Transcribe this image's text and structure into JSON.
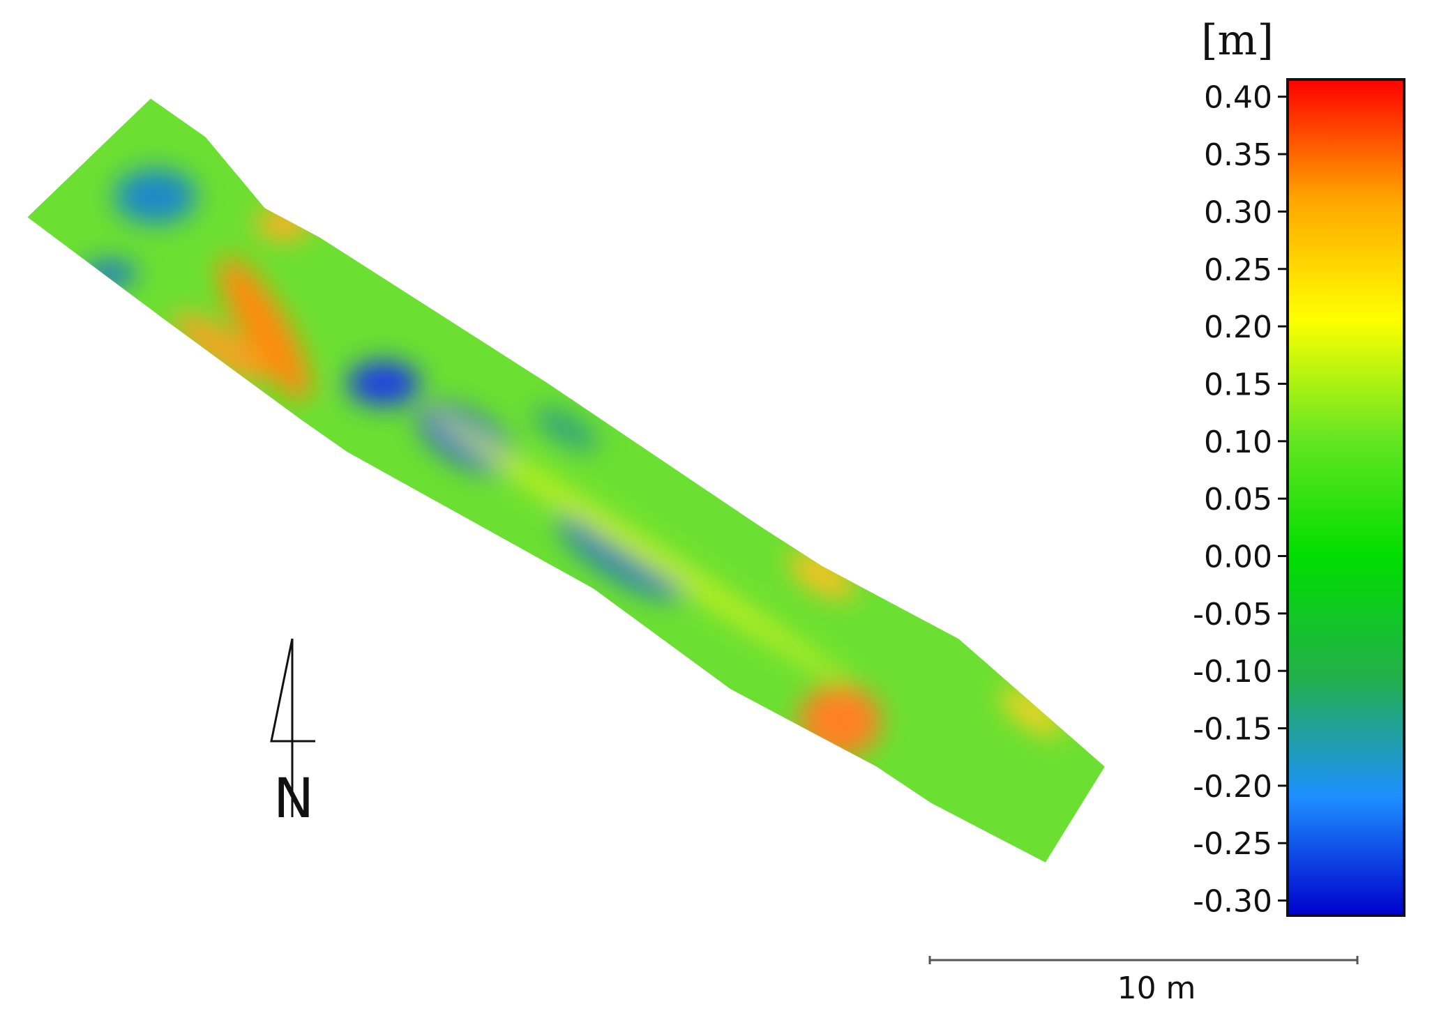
{
  "colorbar": {
    "label": "[m]",
    "clim": [
      -0.313,
      0.415
    ],
    "ticks": [
      {
        "value": 0.4,
        "label": "0.40"
      },
      {
        "value": 0.35,
        "label": "0.35"
      },
      {
        "value": 0.3,
        "label": "0.30"
      },
      {
        "value": 0.25,
        "label": "0.25"
      },
      {
        "value": 0.2,
        "label": "0.20"
      },
      {
        "value": 0.15,
        "label": "0.15"
      },
      {
        "value": 0.1,
        "label": "0.10"
      },
      {
        "value": 0.05,
        "label": "0.05"
      },
      {
        "value": 0,
        "label": "0.00"
      },
      {
        "value": -0.05,
        "label": "-0.05"
      },
      {
        "value": -0.1,
        "label": "-0.10"
      },
      {
        "value": -0.15,
        "label": "-0.15"
      },
      {
        "value": -0.2,
        "label": "-0.20"
      },
      {
        "value": -0.25,
        "label": "-0.25"
      },
      {
        "value": -0.3,
        "label": "-0.30"
      }
    ],
    "colors": [
      "#0000cc",
      "#1e90ff",
      "#22b04a",
      "#00dd00",
      "#66e622",
      "#ffff00",
      "#ffa500",
      "#ff0000"
    ]
  },
  "scale_bar": {
    "label": "10 m"
  },
  "north_arrow": {
    "label": "N"
  }
}
